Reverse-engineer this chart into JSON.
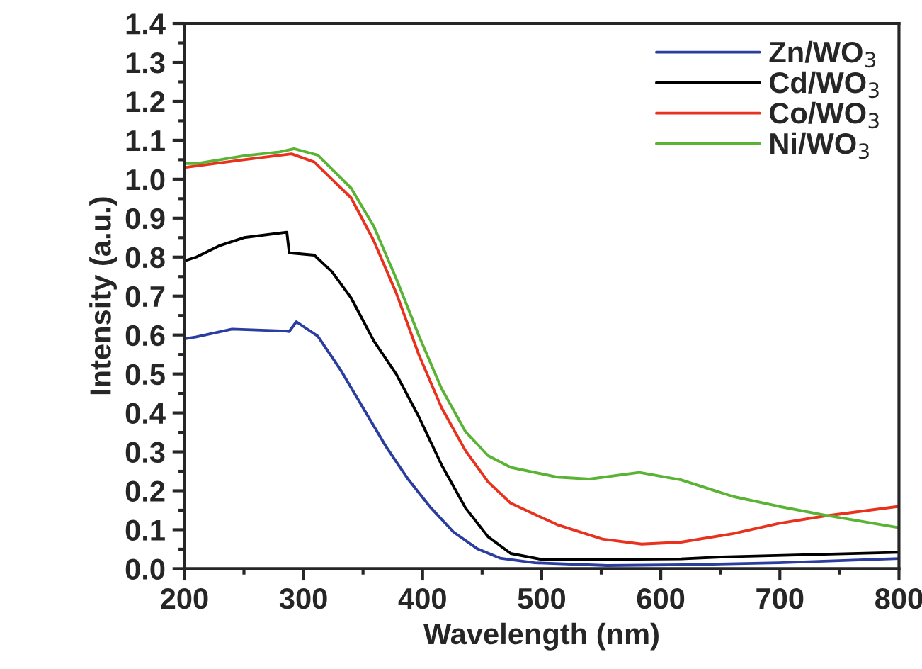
{
  "chart_data": {
    "type": "line",
    "xlabel": "Wavelength (nm)",
    "ylabel": "Intensity (a.u.)",
    "xlim": [
      200,
      800
    ],
    "ylim": [
      0,
      1.4
    ],
    "xticks": [
      200,
      {
        "value": 250,
        "label": null
      },
      300,
      {
        "value": 350,
        "label": null
      },
      400,
      {
        "value": 450,
        "label": null
      },
      500,
      {
        "value": 550,
        "label": null
      },
      600,
      {
        "value": 650,
        "label": null
      },
      700,
      {
        "value": 750,
        "label": null
      },
      800
    ],
    "yticks": [
      {
        "value": 0,
        "label": "0.0"
      },
      {
        "value": 0.05,
        "label": null
      },
      0.1,
      {
        "value": 0.15,
        "label": null
      },
      0.2,
      {
        "value": 0.25,
        "label": null
      },
      0.3,
      {
        "value": 0.35,
        "label": null
      },
      0.4,
      {
        "value": 0.45,
        "label": null
      },
      0.5,
      {
        "value": 0.55,
        "label": null
      },
      0.6,
      {
        "value": 0.65,
        "label": null
      },
      0.7,
      {
        "value": 0.75,
        "label": null
      },
      0.8,
      {
        "value": 0.85,
        "label": null
      },
      0.9,
      {
        "value": 0.95,
        "label": null
      },
      {
        "value": 1.0,
        "label": "1.0"
      },
      {
        "value": 1.05,
        "label": null
      },
      1.1,
      {
        "value": 1.15,
        "label": null
      },
      1.2,
      {
        "value": 1.25,
        "label": null
      },
      1.3,
      {
        "value": 1.35,
        "label": null
      },
      1.4
    ],
    "grid": false,
    "legend": "top right",
    "marker": "none",
    "line_style": "solid",
    "series": [
      {
        "name": "Zn/WO$_{3}$",
        "color": "#2b3d9e",
        "x": [
          200,
          210,
          240,
          285,
          288,
          294,
          312,
          331,
          350,
          369,
          388,
          407,
          426,
          446,
          465,
          494,
          555,
          620,
          699,
          800
        ],
        "values": [
          0.59,
          0.595,
          0.615,
          0.61,
          0.609,
          0.634,
          0.597,
          0.511,
          0.413,
          0.315,
          0.229,
          0.156,
          0.094,
          0.051,
          0.027,
          0.015,
          0.008,
          0.01,
          0.015,
          0.026
        ]
      },
      {
        "name": "Cd/WO$_{3}$",
        "color": "#000000",
        "x": [
          200,
          210,
          230,
          250,
          286,
          288,
          309,
          324,
          340,
          359,
          378,
          397,
          416,
          436,
          455,
          474,
          501,
          560,
          617,
          651,
          800
        ],
        "values": [
          0.79,
          0.8,
          0.83,
          0.85,
          0.864,
          0.811,
          0.805,
          0.762,
          0.695,
          0.585,
          0.499,
          0.389,
          0.266,
          0.156,
          0.082,
          0.039,
          0.023,
          0.024,
          0.025,
          0.03,
          0.042
        ]
      },
      {
        "name": "Co/WO$_{3}$",
        "color": "#e8321e",
        "x": [
          200,
          250,
          290,
          309,
          340,
          359,
          378,
          397,
          416,
          436,
          455,
          474,
          513,
          551,
          584,
          617,
          661,
          699,
          737,
          800
        ],
        "values": [
          1.03,
          1.05,
          1.065,
          1.044,
          0.952,
          0.842,
          0.707,
          0.548,
          0.413,
          0.303,
          0.223,
          0.168,
          0.113,
          0.076,
          0.063,
          0.068,
          0.09,
          0.116,
          0.135,
          0.16
        ]
      },
      {
        "name": "Ni/WO$_{3}$",
        "color": "#5ab335",
        "x": [
          200,
          210,
          250,
          280,
          292,
          312,
          340,
          359,
          378,
          397,
          416,
          436,
          455,
          474,
          513,
          540,
          582,
          617,
          661,
          699,
          737,
          800
        ],
        "values": [
          1.04,
          1.04,
          1.06,
          1.07,
          1.078,
          1.062,
          0.977,
          0.879,
          0.744,
          0.597,
          0.462,
          0.352,
          0.29,
          0.26,
          0.235,
          0.23,
          0.247,
          0.228,
          0.185,
          0.16,
          0.138,
          0.105
        ]
      }
    ]
  }
}
